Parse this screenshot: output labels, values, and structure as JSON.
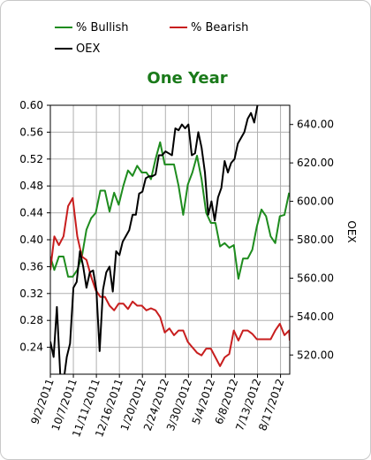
{
  "chart_data": {
    "type": "line",
    "title": "One Year",
    "title_color": "#1a7a1a",
    "y2label": "OEX",
    "ylim": [
      0.2,
      0.6
    ],
    "y_ticks": [
      "0.24",
      "0.28",
      "0.32",
      "0.36",
      "0.40",
      "0.44",
      "0.48",
      "0.52",
      "0.56",
      "0.60"
    ],
    "y2lim": [
      510,
      650
    ],
    "y2_ticks": [
      "520.00",
      "540.00",
      "560.00",
      "580.00",
      "600.00",
      "620.00",
      "640.00"
    ],
    "x_range": [
      "2011-09-02",
      "2012-08-31"
    ],
    "x_ticks": [
      "9/2/2011",
      "10/7/2011",
      "11/11/2011",
      "12/16/2011",
      "1/20/2012",
      "2/24/2012",
      "3/30/2012",
      "5/4/2012",
      "6/8/2012",
      "7/13/2012",
      "8/17/2012"
    ],
    "grid": true,
    "legend_placement": "top",
    "series": [
      {
        "name": "% Bullish",
        "axis": "left",
        "color": "#1e8c1e",
        "points": [
          [
            "2011-09-02",
            0.375
          ],
          [
            "2011-09-08",
            0.355
          ],
          [
            "2011-09-15",
            0.375
          ],
          [
            "2011-09-22",
            0.375
          ],
          [
            "2011-09-29",
            0.345
          ],
          [
            "2011-10-06",
            0.345
          ],
          [
            "2011-10-13",
            0.355
          ],
          [
            "2011-10-20",
            0.375
          ],
          [
            "2011-10-27",
            0.415
          ],
          [
            "2011-11-03",
            0.432
          ],
          [
            "2011-11-10",
            0.44
          ],
          [
            "2011-11-17",
            0.473
          ],
          [
            "2011-11-24",
            0.473
          ],
          [
            "2011-12-01",
            0.442
          ],
          [
            "2011-12-08",
            0.47
          ],
          [
            "2011-12-15",
            0.452
          ],
          [
            "2011-12-22",
            0.48
          ],
          [
            "2011-12-29",
            0.503
          ],
          [
            "2012-01-05",
            0.495
          ],
          [
            "2012-01-12",
            0.51
          ],
          [
            "2012-01-19",
            0.5
          ],
          [
            "2012-01-26",
            0.5
          ],
          [
            "2012-02-02",
            0.49
          ],
          [
            "2012-02-09",
            0.52
          ],
          [
            "2012-02-16",
            0.545
          ],
          [
            "2012-02-23",
            0.512
          ],
          [
            "2012-03-01",
            0.512
          ],
          [
            "2012-03-08",
            0.512
          ],
          [
            "2012-03-15",
            0.48
          ],
          [
            "2012-03-22",
            0.437
          ],
          [
            "2012-03-29",
            0.482
          ],
          [
            "2012-04-05",
            0.5
          ],
          [
            "2012-04-12",
            0.525
          ],
          [
            "2012-04-19",
            0.49
          ],
          [
            "2012-04-26",
            0.44
          ],
          [
            "2012-05-03",
            0.425
          ],
          [
            "2012-05-10",
            0.425
          ],
          [
            "2012-05-17",
            0.39
          ],
          [
            "2012-05-24",
            0.395
          ],
          [
            "2012-05-31",
            0.388
          ],
          [
            "2012-06-07",
            0.392
          ],
          [
            "2012-06-14",
            0.342
          ],
          [
            "2012-06-21",
            0.372
          ],
          [
            "2012-06-28",
            0.372
          ],
          [
            "2012-07-05",
            0.385
          ],
          [
            "2012-07-12",
            0.42
          ],
          [
            "2012-07-19",
            0.445
          ],
          [
            "2012-07-26",
            0.435
          ],
          [
            "2012-08-02",
            0.405
          ],
          [
            "2012-08-09",
            0.395
          ],
          [
            "2012-08-16",
            0.435
          ],
          [
            "2012-08-23",
            0.437
          ],
          [
            "2012-08-30",
            0.47
          ]
        ]
      },
      {
        "name": "% Bearish",
        "axis": "left",
        "color": "#c81e1e",
        "points": [
          [
            "2011-09-02",
            0.355
          ],
          [
            "2011-09-08",
            0.405
          ],
          [
            "2011-09-15",
            0.392
          ],
          [
            "2011-09-22",
            0.405
          ],
          [
            "2011-09-29",
            0.45
          ],
          [
            "2011-10-06",
            0.462
          ],
          [
            "2011-10-13",
            0.405
          ],
          [
            "2011-10-20",
            0.375
          ],
          [
            "2011-10-27",
            0.37
          ],
          [
            "2011-11-03",
            0.345
          ],
          [
            "2011-11-10",
            0.325
          ],
          [
            "2011-11-17",
            0.315
          ],
          [
            "2011-11-24",
            0.315
          ],
          [
            "2011-12-01",
            0.302
          ],
          [
            "2011-12-08",
            0.295
          ],
          [
            "2011-12-15",
            0.305
          ],
          [
            "2011-12-22",
            0.305
          ],
          [
            "2011-12-29",
            0.297
          ],
          [
            "2012-01-05",
            0.308
          ],
          [
            "2012-01-12",
            0.302
          ],
          [
            "2012-01-19",
            0.302
          ],
          [
            "2012-01-26",
            0.295
          ],
          [
            "2012-02-02",
            0.298
          ],
          [
            "2012-02-09",
            0.295
          ],
          [
            "2012-02-16",
            0.285
          ],
          [
            "2012-02-23",
            0.262
          ],
          [
            "2012-03-01",
            0.268
          ],
          [
            "2012-03-08",
            0.258
          ],
          [
            "2012-03-15",
            0.265
          ],
          [
            "2012-03-22",
            0.265
          ],
          [
            "2012-03-29",
            0.248
          ],
          [
            "2012-04-05",
            0.24
          ],
          [
            "2012-04-12",
            0.232
          ],
          [
            "2012-04-19",
            0.228
          ],
          [
            "2012-04-26",
            0.238
          ],
          [
            "2012-05-03",
            0.238
          ],
          [
            "2012-05-10",
            0.225
          ],
          [
            "2012-05-17",
            0.212
          ],
          [
            "2012-05-24",
            0.225
          ],
          [
            "2012-05-31",
            0.23
          ],
          [
            "2012-06-07",
            0.265
          ],
          [
            "2012-06-14",
            0.25
          ],
          [
            "2012-06-21",
            0.265
          ],
          [
            "2012-06-28",
            0.265
          ],
          [
            "2012-07-05",
            0.26
          ],
          [
            "2012-07-12",
            0.252
          ],
          [
            "2012-07-19",
            0.252
          ],
          [
            "2012-07-26",
            0.252
          ],
          [
            "2012-08-02",
            0.252
          ],
          [
            "2012-08-09",
            0.265
          ],
          [
            "2012-08-16",
            0.275
          ],
          [
            "2012-08-23",
            0.258
          ],
          [
            "2012-08-30",
            0.265
          ],
          [
            "2012-08-31",
            0.25
          ]
        ]
      },
      {
        "name": "OEX",
        "axis": "right",
        "color": "#000000",
        "points": [
          [
            "2011-09-02",
            527
          ],
          [
            "2011-09-07",
            519
          ],
          [
            "2011-09-12",
            545
          ],
          [
            "2011-09-17",
            510
          ],
          [
            "2011-09-22",
            506
          ],
          [
            "2011-09-27",
            519
          ],
          [
            "2011-10-02",
            526
          ],
          [
            "2011-10-07",
            555
          ],
          [
            "2011-10-12",
            558
          ],
          [
            "2011-10-17",
            574
          ],
          [
            "2011-10-22",
            566
          ],
          [
            "2011-10-27",
            555
          ],
          [
            "2011-11-01",
            563
          ],
          [
            "2011-11-06",
            564
          ],
          [
            "2011-11-11",
            554
          ],
          [
            "2011-11-16",
            522
          ],
          [
            "2011-11-21",
            554
          ],
          [
            "2011-11-26",
            563
          ],
          [
            "2011-12-01",
            566
          ],
          [
            "2011-12-06",
            553
          ],
          [
            "2011-12-11",
            574
          ],
          [
            "2011-12-16",
            572
          ],
          [
            "2011-12-21",
            579
          ],
          [
            "2011-12-26",
            582
          ],
          [
            "2011-12-31",
            585
          ],
          [
            "2012-01-05",
            593
          ],
          [
            "2012-01-10",
            593
          ],
          [
            "2012-01-15",
            604
          ],
          [
            "2012-01-20",
            605
          ],
          [
            "2012-01-25",
            612
          ],
          [
            "2012-01-30",
            613
          ],
          [
            "2012-02-04",
            613
          ],
          [
            "2012-02-09",
            614
          ],
          [
            "2012-02-14",
            624
          ],
          [
            "2012-02-19",
            624
          ],
          [
            "2012-02-24",
            626
          ],
          [
            "2012-02-29",
            625
          ],
          [
            "2012-03-05",
            624
          ],
          [
            "2012-03-10",
            638
          ],
          [
            "2012-03-15",
            637
          ],
          [
            "2012-03-20",
            640
          ],
          [
            "2012-03-25",
            638
          ],
          [
            "2012-03-30",
            640
          ],
          [
            "2012-04-04",
            624
          ],
          [
            "2012-04-09",
            625
          ],
          [
            "2012-04-14",
            636
          ],
          [
            "2012-04-19",
            628
          ],
          [
            "2012-04-24",
            615
          ],
          [
            "2012-04-29",
            593
          ],
          [
            "2012-05-04",
            600
          ],
          [
            "2012-05-09",
            590
          ],
          [
            "2012-05-14",
            602
          ],
          [
            "2012-05-19",
            607
          ],
          [
            "2012-05-24",
            621
          ],
          [
            "2012-05-29",
            615
          ],
          [
            "2012-06-03",
            620
          ],
          [
            "2012-06-08",
            622
          ],
          [
            "2012-06-13",
            630
          ],
          [
            "2012-06-18",
            633
          ],
          [
            "2012-06-23",
            636
          ],
          [
            "2012-06-28",
            643
          ],
          [
            "2012-07-03",
            646
          ],
          [
            "2012-07-08",
            641
          ],
          [
            "2012-07-13",
            650
          ]
        ]
      }
    ]
  }
}
